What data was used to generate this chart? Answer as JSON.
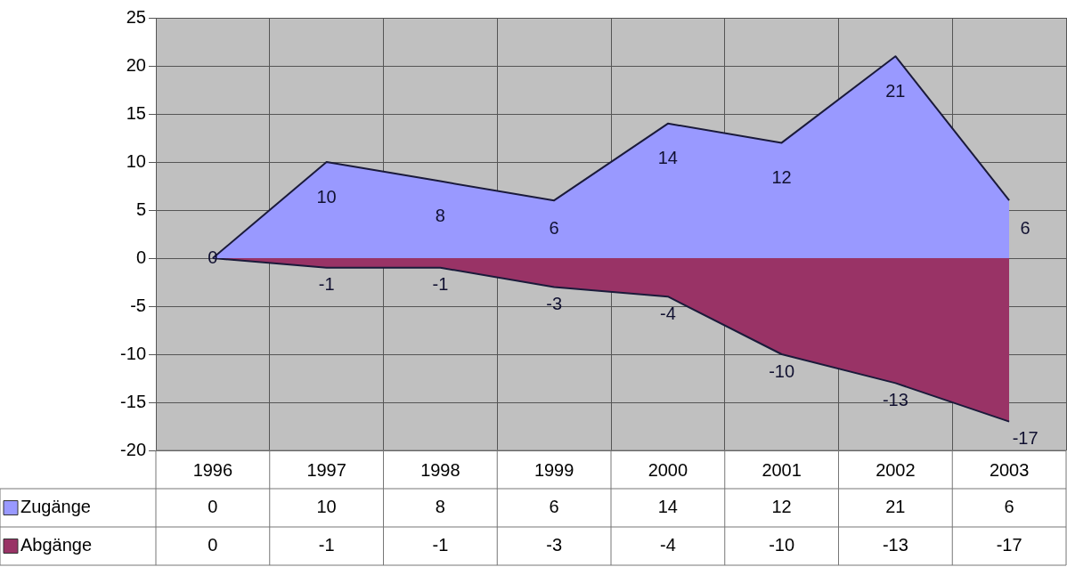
{
  "chart_data": {
    "type": "area",
    "categories": [
      "1996",
      "1997",
      "1998",
      "1999",
      "2000",
      "2001",
      "2002",
      "2003"
    ],
    "series": [
      {
        "name": "Zugänge",
        "color": "#9999ff",
        "values": [
          0,
          10,
          8,
          6,
          14,
          12,
          21,
          6
        ]
      },
      {
        "name": "Abgänge",
        "color": "#993366",
        "values": [
          0,
          -1,
          -1,
          -3,
          -4,
          -10,
          -13,
          -17
        ]
      }
    ],
    "annotations": [
      {
        "text": "0",
        "x": "1996",
        "y": 0
      },
      {
        "text": "10",
        "x": "1997",
        "y": 10
      },
      {
        "text": "8",
        "x": "1998",
        "y": 8
      },
      {
        "text": "6",
        "x": "1999",
        "y": 6
      },
      {
        "text": "14",
        "x": "2000",
        "y": 14
      },
      {
        "text": "12",
        "x": "2001",
        "y": 12
      },
      {
        "text": "21",
        "x": "2002",
        "y": 21
      },
      {
        "text": "6",
        "x": "2003",
        "y": 6
      },
      {
        "text": "-1",
        "x": "1997",
        "y": -1
      },
      {
        "text": "-1",
        "x": "1998",
        "y": -1
      },
      {
        "text": "-3",
        "x": "1999",
        "y": -3
      },
      {
        "text": "-4",
        "x": "2000",
        "y": -4
      },
      {
        "text": "-10",
        "x": "2001",
        "y": -10
      },
      {
        "text": "-13",
        "x": "2002",
        "y": -13
      },
      {
        "text": "-17",
        "x": "2003",
        "y": -17
      }
    ],
    "ylim": [
      -20,
      25
    ],
    "yticks": [
      -20,
      -15,
      -10,
      -5,
      0,
      5,
      10,
      15,
      20,
      25
    ],
    "grid": true,
    "legend": "bottom",
    "data_labels": true
  }
}
